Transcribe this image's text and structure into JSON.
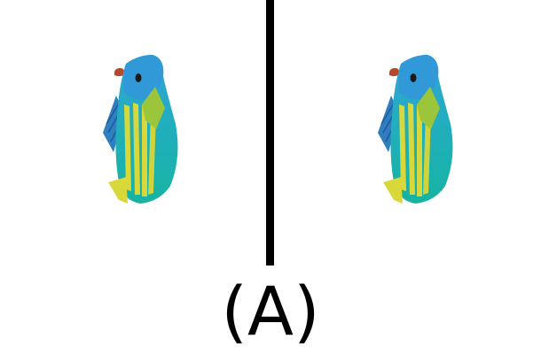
{
  "figure": {
    "label": "(A)"
  },
  "panels": [
    {
      "icon": "tropical-fish-icon"
    },
    {
      "icon": "tropical-fish-icon"
    }
  ],
  "colors": {
    "background": "#ffffff",
    "divider": "#000000",
    "fish_body_blue": "#2ea6cf",
    "fish_body_teal": "#1db3a8",
    "fish_stripe_yellow": "#d8d83a",
    "fish_fin_green": "#9bc53a",
    "fish_eye": "#1a1a1a",
    "fish_red_accent": "#b54a2a"
  }
}
